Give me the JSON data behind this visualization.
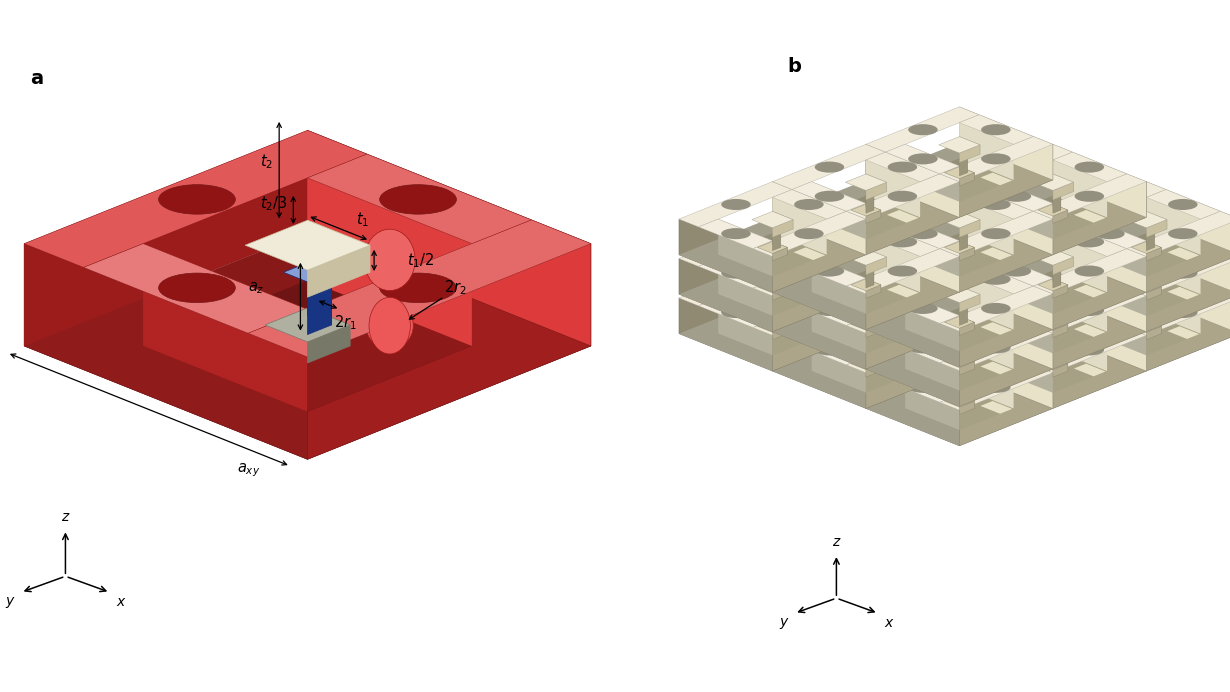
{
  "bg_color": "#ffffff",
  "red_color": "#d93030",
  "red_dark": "#aa2020",
  "red_mid": "#c42828",
  "red_light": "#e84040",
  "red_top": "#e05050",
  "beige_color": "#e8e2c8",
  "beige_dark": "#c8c0a0",
  "beige_mid": "#d8d0b0",
  "beige_light": "#f0ead8",
  "blue_color": "#2850b8",
  "blue_dark": "#1a3888",
  "blue_light": "#4878d0",
  "gray_color": "#9898888",
  "gray_c": "#989888",
  "gray_d": "#787868",
  "gray_l": "#b8b8a8",
  "label_fontsize": 14,
  "annot_fontsize": 10.5
}
